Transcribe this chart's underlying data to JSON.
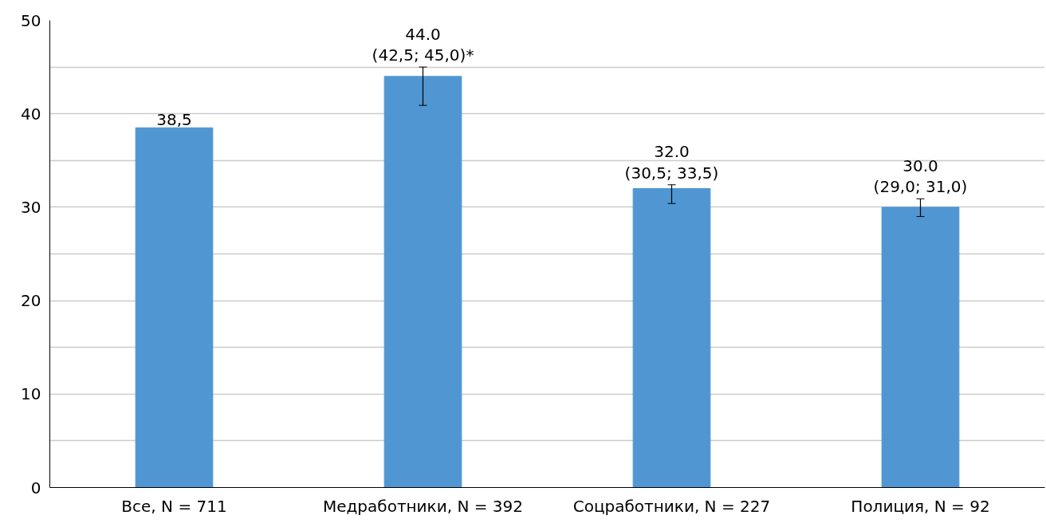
{
  "chart_data": {
    "type": "bar",
    "categories": [
      "Все, N = 711",
      "Медработники, N = 392",
      "Соцработники, N = 227",
      "Полиция, N = 92"
    ],
    "values": [
      38.5,
      44.0,
      32.0,
      30.0
    ],
    "color": "#5096d2",
    "errors": [
      null,
      [
        40.9,
        45.0
      ],
      [
        30.4,
        32.4
      ],
      [
        29.0,
        30.9
      ]
    ],
    "value_labels": [
      "38,5",
      "44.0\n(42,5; 45,0)*",
      "32.0\n(30,5; 33,5)",
      "30.0\n(29,0; 31,0)"
    ],
    "ylim": [
      0,
      50
    ],
    "yticks": [
      0,
      {
        "value": 5,
        "label": null
      },
      10,
      {
        "value": 15,
        "label": null
      },
      20,
      {
        "value": 25,
        "label": null
      },
      30,
      {
        "value": 35,
        "label": null
      },
      40,
      {
        "value": 45,
        "label": null
      },
      50
    ],
    "grid": "y"
  }
}
